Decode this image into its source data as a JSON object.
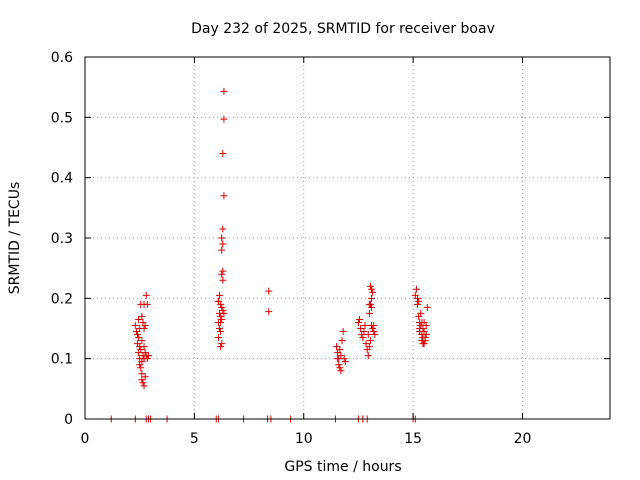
{
  "chart_data": {
    "type": "scatter",
    "title": "Day 232 of 2025, SRMTID for receiver boav",
    "xlabel": "GPS time / hours",
    "ylabel": "SRMTID / TECUs",
    "xlim": [
      0,
      24
    ],
    "ylim": [
      0,
      0.6
    ],
    "x_ticks": [
      0,
      5,
      10,
      15,
      20
    ],
    "x_tick_labels": [
      "0",
      "5",
      "10",
      "15",
      "20"
    ],
    "y_ticks": [
      0,
      0.1,
      0.2,
      0.3,
      0.4,
      0.5,
      0.6
    ],
    "y_tick_labels": [
      "0",
      "0.1",
      "0.2",
      "0.3",
      "0.4",
      "0.5",
      "0.6"
    ],
    "grid": true,
    "marker": "plus",
    "color": "#dd0000",
    "series": [
      {
        "points": [
          [
            2.3,
            0.155
          ],
          [
            2.35,
            0.145
          ],
          [
            2.4,
            0.14
          ],
          [
            2.4,
            0.125
          ],
          [
            2.45,
            0.11
          ],
          [
            2.5,
            0.1
          ],
          [
            2.5,
            0.09
          ],
          [
            2.55,
            0.085
          ],
          [
            2.6,
            0.075
          ],
          [
            2.6,
            0.065
          ],
          [
            2.65,
            0.06
          ],
          [
            2.7,
            0.055
          ],
          [
            2.75,
            0.07
          ],
          [
            2.55,
            0.19
          ],
          [
            2.7,
            0.19
          ],
          [
            2.8,
            0.205
          ],
          [
            2.6,
            0.17
          ],
          [
            2.65,
            0.16
          ],
          [
            2.7,
            0.15
          ],
          [
            2.5,
            0.15
          ],
          [
            2.45,
            0.135
          ],
          [
            2.6,
            0.13
          ],
          [
            2.7,
            0.12
          ],
          [
            2.75,
            0.11
          ],
          [
            2.8,
            0.105
          ],
          [
            2.85,
            0.1
          ],
          [
            2.9,
            0.105
          ],
          [
            2.65,
            0.105
          ],
          [
            2.55,
            0.115
          ],
          [
            2.5,
            0.12
          ],
          [
            2.75,
            0.155
          ],
          [
            2.85,
            0.19
          ],
          [
            2.45,
            0.165
          ],
          [
            2.6,
            0.095
          ],
          [
            2.7,
            0.1
          ],
          [
            6.1,
            0.195
          ],
          [
            6.15,
            0.205
          ],
          [
            6.2,
            0.19
          ],
          [
            6.25,
            0.185
          ],
          [
            6.15,
            0.175
          ],
          [
            6.2,
            0.17
          ],
          [
            6.25,
            0.165
          ],
          [
            6.1,
            0.16
          ],
          [
            6.15,
            0.15
          ],
          [
            6.2,
            0.145
          ],
          [
            6.1,
            0.135
          ],
          [
            6.25,
            0.125
          ],
          [
            6.2,
            0.12
          ],
          [
            6.3,
            0.18
          ],
          [
            6.35,
            0.175
          ],
          [
            6.3,
            0.23
          ],
          [
            6.25,
            0.24
          ],
          [
            6.3,
            0.245
          ],
          [
            6.25,
            0.28
          ],
          [
            6.3,
            0.29
          ],
          [
            6.25,
            0.3
          ],
          [
            6.3,
            0.315
          ],
          [
            6.35,
            0.37
          ],
          [
            6.3,
            0.44
          ],
          [
            6.35,
            0.497
          ],
          [
            6.35,
            0.543
          ],
          [
            6.1,
            0.195
          ],
          [
            6.2,
            0.16
          ],
          [
            8.4,
            0.212
          ],
          [
            8.4,
            0.178
          ],
          [
            11.5,
            0.12
          ],
          [
            11.55,
            0.11
          ],
          [
            11.6,
            0.1
          ],
          [
            11.6,
            0.09
          ],
          [
            11.65,
            0.085
          ],
          [
            11.7,
            0.08
          ],
          [
            11.65,
            0.115
          ],
          [
            11.75,
            0.13
          ],
          [
            11.8,
            0.145
          ],
          [
            11.85,
            0.1
          ],
          [
            11.9,
            0.095
          ],
          [
            11.55,
            0.1
          ],
          [
            11.7,
            0.105
          ],
          [
            12.5,
            0.16
          ],
          [
            12.55,
            0.165
          ],
          [
            12.6,
            0.15
          ],
          [
            12.65,
            0.14
          ],
          [
            12.7,
            0.135
          ],
          [
            12.75,
            0.145
          ],
          [
            12.8,
            0.155
          ],
          [
            12.85,
            0.125
          ],
          [
            12.9,
            0.115
          ],
          [
            12.95,
            0.105
          ],
          [
            13.0,
            0.12
          ],
          [
            13.05,
            0.13
          ],
          [
            13.0,
            0.175
          ],
          [
            13.05,
            0.19
          ],
          [
            13.1,
            0.2
          ],
          [
            13.15,
            0.21
          ],
          [
            13.05,
            0.22
          ],
          [
            13.1,
            0.215
          ],
          [
            13.15,
            0.15
          ],
          [
            13.2,
            0.145
          ],
          [
            13.25,
            0.14
          ],
          [
            13.1,
            0.155
          ],
          [
            12.95,
            0.14
          ],
          [
            13.2,
            0.155
          ],
          [
            13.0,
            0.19
          ],
          [
            13.1,
            0.185
          ],
          [
            15.1,
            0.205
          ],
          [
            15.15,
            0.215
          ],
          [
            15.2,
            0.2
          ],
          [
            15.25,
            0.195
          ],
          [
            15.2,
            0.19
          ],
          [
            15.25,
            0.17
          ],
          [
            15.3,
            0.16
          ],
          [
            15.35,
            0.155
          ],
          [
            15.3,
            0.15
          ],
          [
            15.4,
            0.14
          ],
          [
            15.45,
            0.135
          ],
          [
            15.4,
            0.13
          ],
          [
            15.5,
            0.125
          ],
          [
            15.55,
            0.135
          ],
          [
            15.6,
            0.14
          ],
          [
            15.65,
            0.185
          ],
          [
            15.5,
            0.16
          ],
          [
            15.45,
            0.15
          ],
          [
            15.35,
            0.175
          ],
          [
            15.3,
            0.145
          ],
          [
            15.6,
            0.155
          ],
          [
            15.5,
            0.145
          ],
          [
            15.4,
            0.16
          ],
          [
            15.55,
            0.13
          ],
          [
            15.45,
            0.125
          ]
        ]
      },
      {
        "points": [
          [
            1.2,
            0
          ],
          [
            2.3,
            0
          ],
          [
            2.8,
            0
          ],
          [
            2.9,
            0
          ],
          [
            3.0,
            0
          ],
          [
            3.75,
            0
          ],
          [
            6.0,
            0
          ],
          [
            6.1,
            0
          ],
          [
            7.25,
            0
          ],
          [
            8.35,
            0
          ],
          [
            8.5,
            0
          ],
          [
            9.4,
            0
          ],
          [
            11.45,
            0
          ],
          [
            12.5,
            0
          ],
          [
            12.7,
            0
          ],
          [
            12.9,
            0
          ],
          [
            15.0,
            0
          ],
          [
            15.1,
            0
          ]
        ]
      }
    ]
  }
}
